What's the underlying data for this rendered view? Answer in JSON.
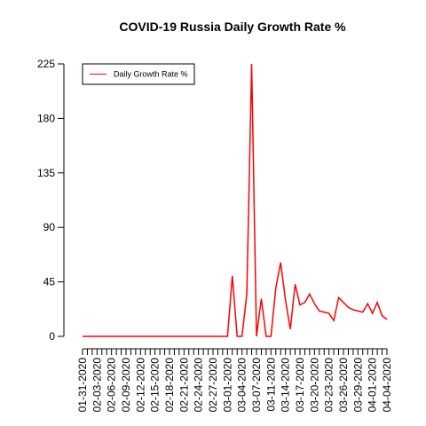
{
  "chart_data": {
    "type": "line",
    "title": "COVID-19 Russia Daily Growth Rate %",
    "categories": [
      "01-31-2020",
      null,
      null,
      "02-03-2020",
      null,
      null,
      "02-06-2020",
      null,
      null,
      "02-09-2020",
      null,
      null,
      "02-12-2020",
      null,
      null,
      "02-15-2020",
      null,
      null,
      "02-18-2020",
      null,
      null,
      "02-21-2020",
      null,
      null,
      "02-24-2020",
      null,
      null,
      "02-27-2020",
      null,
      null,
      "03-01-2020",
      null,
      null,
      "03-04-2020",
      null,
      null,
      "03-07-2020",
      null,
      null,
      "03-11-2020",
      null,
      null,
      "03-14-2020",
      null,
      null,
      "03-17-2020",
      null,
      null,
      "03-20-2020",
      null,
      null,
      "03-23-2020",
      null,
      null,
      "03-26-2020",
      null,
      null,
      "03-29-2020",
      null,
      null,
      "04-01-2020",
      null,
      null,
      "04-04-2020"
    ],
    "series": [
      {
        "name": "Daily Growth Rate %",
        "color": "#ff0000",
        "values": [
          0,
          0,
          0,
          0,
          0,
          0,
          0,
          0,
          0,
          0,
          0,
          0,
          0,
          0,
          0,
          0,
          0,
          0,
          0,
          0,
          0,
          0,
          0,
          0,
          0,
          0,
          0,
          0,
          0,
          0,
          0,
          50,
          0,
          0,
          35,
          225,
          0,
          31,
          0,
          0,
          40,
          61,
          30,
          6,
          43,
          26,
          28,
          35,
          27,
          21,
          20,
          19,
          13,
          32,
          28,
          24,
          22,
          21,
          20,
          27,
          19,
          28,
          17,
          14
        ]
      }
    ],
    "ylim": [
      0,
      225
    ],
    "yticks": [
      0,
      45,
      90,
      135,
      180,
      225
    ],
    "legend": "top-left"
  }
}
